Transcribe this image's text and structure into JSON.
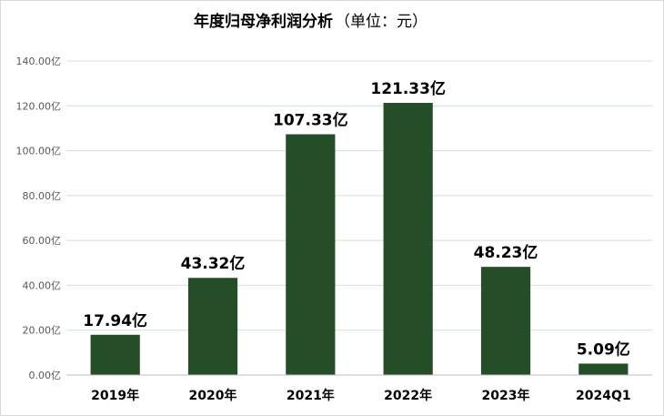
{
  "chart_data": {
    "type": "bar",
    "title": "年度归母净利润分析",
    "subtitle": "（单位：元）",
    "categories": [
      "2019年",
      "2020年",
      "2021年",
      "2022年",
      "2023年",
      "2024Q1"
    ],
    "values": [
      17.94,
      43.32,
      107.33,
      121.33,
      48.23,
      5.09
    ],
    "data_labels": [
      "17.94亿",
      "43.32亿",
      "107.33亿",
      "121.33亿",
      "48.23亿",
      "5.09亿"
    ],
    "y_ticks": [
      {
        "value": 0,
        "label": "0.00亿"
      },
      {
        "value": 20,
        "label": "20.00亿"
      },
      {
        "value": 40,
        "label": "40.00亿"
      },
      {
        "value": 60,
        "label": "60.00亿"
      },
      {
        "value": 80,
        "label": "80.00亿"
      },
      {
        "value": 100,
        "label": "100.00亿"
      },
      {
        "value": 120,
        "label": "120.00亿"
      },
      {
        "value": 140,
        "label": "140.00亿"
      }
    ],
    "ylim": [
      0,
      140
    ],
    "grid": true,
    "legend": "none",
    "colors": {
      "bar": "#254d28",
      "grid": "#cfe3cf",
      "axis": "#bfbfbf"
    }
  }
}
